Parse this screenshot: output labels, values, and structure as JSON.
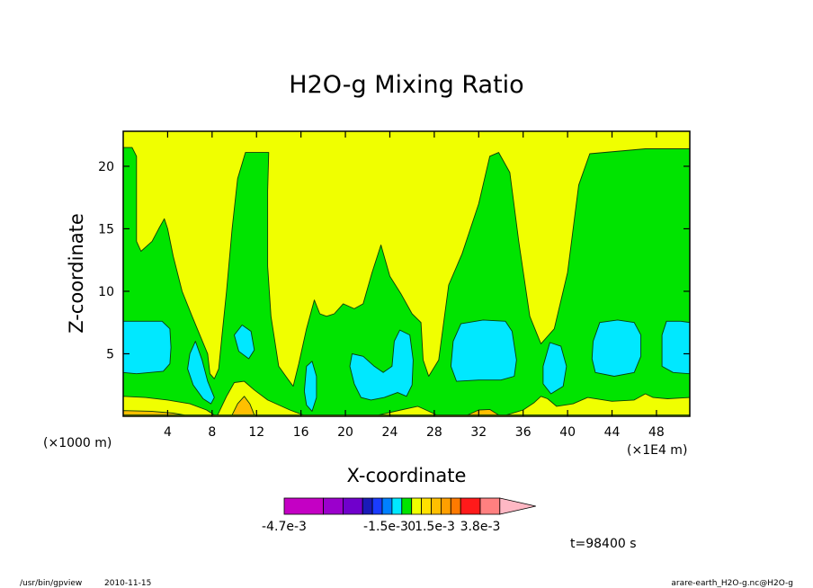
{
  "footer": {
    "left_path": "/usr/bin/gpview",
    "left_date": "2010-11-15",
    "right_text": "arare-earth_H2O-g.nc@H2O-g"
  },
  "time_label": "t=98400 s",
  "chart_data": {
    "type": "contour",
    "title": "H2O-g Mixing Ratio",
    "xlabel": "X-coordinate",
    "ylabel": "Z-coordinate",
    "x_unit_label": "(×1E4 m)",
    "y_unit_label": "(×1000 m)",
    "xlim": [
      0,
      51
    ],
    "ylim": [
      0,
      22.8
    ],
    "x_ticks": [
      4,
      8,
      12,
      16,
      20,
      24,
      28,
      32,
      36,
      40,
      44,
      48
    ],
    "y_ticks": [
      5,
      10,
      15,
      20
    ],
    "regions": [
      {
        "level": "green",
        "polygon": [
          [
            0,
            0.1
          ],
          [
            51,
            0.1
          ],
          [
            51,
            21.4
          ],
          [
            47,
            21.4
          ],
          [
            42,
            21.0
          ],
          [
            41,
            18.5
          ],
          [
            40,
            11.5
          ],
          [
            38.8,
            7.0
          ],
          [
            37.6,
            5.8
          ],
          [
            36.6,
            8.0
          ],
          [
            35.6,
            14.0
          ],
          [
            34.8,
            19.5
          ],
          [
            33.8,
            21.1
          ],
          [
            33.0,
            20.8
          ],
          [
            32.0,
            17.0
          ],
          [
            30.5,
            13.0
          ],
          [
            29.3,
            10.5
          ],
          [
            28.4,
            4.5
          ],
          [
            27.5,
            3.2
          ],
          [
            27.0,
            4.5
          ],
          [
            26.8,
            7.5
          ],
          [
            26.0,
            8.2
          ],
          [
            25.0,
            9.8
          ],
          [
            24.0,
            11.2
          ],
          [
            23.2,
            13.7
          ],
          [
            22.4,
            11.5
          ],
          [
            21.6,
            9.0
          ],
          [
            20.8,
            8.6
          ],
          [
            19.8,
            9.0
          ],
          [
            19.0,
            8.2
          ],
          [
            18.3,
            8.0
          ],
          [
            17.7,
            8.2
          ],
          [
            17.2,
            9.3
          ],
          [
            16.5,
            7.0
          ],
          [
            15.8,
            4.2
          ],
          [
            15.3,
            2.4
          ],
          [
            14.8,
            3.0
          ],
          [
            14.0,
            4.0
          ],
          [
            13.3,
            8.0
          ],
          [
            13.0,
            12.0
          ],
          [
            13.0,
            18.0
          ],
          [
            13.1,
            21.1
          ],
          [
            12.4,
            21.1
          ],
          [
            11.0,
            21.1
          ],
          [
            10.3,
            19.0
          ],
          [
            9.8,
            15.0
          ],
          [
            9.3,
            10.0
          ],
          [
            8.9,
            6.5
          ],
          [
            8.6,
            3.8
          ],
          [
            8.2,
            3.0
          ],
          [
            7.8,
            3.4
          ],
          [
            7.6,
            5.0
          ],
          [
            6.9,
            6.5
          ],
          [
            6.2,
            8.0
          ],
          [
            5.3,
            10.0
          ],
          [
            4.5,
            12.8
          ],
          [
            4.0,
            15.0
          ],
          [
            3.7,
            15.8
          ],
          [
            3.2,
            15.0
          ],
          [
            2.6,
            14.0
          ],
          [
            1.6,
            13.2
          ],
          [
            1.2,
            14.0
          ],
          [
            1.2,
            18.0
          ],
          [
            1.2,
            20.8
          ],
          [
            0.8,
            21.5
          ],
          [
            0,
            21.5
          ]
        ]
      },
      {
        "level": "cyan",
        "polygon": [
          [
            0,
            3.5
          ],
          [
            1.2,
            3.4
          ],
          [
            2.4,
            3.5
          ],
          [
            3.6,
            3.6
          ],
          [
            4.2,
            4.2
          ],
          [
            4.3,
            5.5
          ],
          [
            4.2,
            7.0
          ],
          [
            3.5,
            7.6
          ],
          [
            2.0,
            7.6
          ],
          [
            0.8,
            7.6
          ],
          [
            0,
            7.6
          ]
        ]
      },
      {
        "level": "cyan",
        "polygon": [
          [
            6.0,
            5.0
          ],
          [
            6.5,
            6.0
          ],
          [
            7.1,
            4.5
          ],
          [
            7.6,
            2.8
          ],
          [
            8.2,
            1.5
          ],
          [
            7.9,
            1.0
          ],
          [
            7.2,
            1.4
          ],
          [
            6.3,
            2.5
          ],
          [
            5.8,
            3.8
          ]
        ]
      },
      {
        "level": "cyan",
        "polygon": [
          [
            10.0,
            6.5
          ],
          [
            10.7,
            7.3
          ],
          [
            11.5,
            6.8
          ],
          [
            11.8,
            5.3
          ],
          [
            11.3,
            4.6
          ],
          [
            10.4,
            5.2
          ]
        ]
      },
      {
        "level": "cyan",
        "polygon": [
          [
            16.3,
            2.0
          ],
          [
            16.5,
            4.0
          ],
          [
            17.0,
            4.4
          ],
          [
            17.4,
            3.2
          ],
          [
            17.4,
            1.5
          ],
          [
            17.0,
            0.4
          ],
          [
            16.5,
            0.9
          ]
        ]
      },
      {
        "level": "cyan",
        "polygon": [
          [
            20.4,
            4.0
          ],
          [
            20.6,
            5.0
          ],
          [
            21.6,
            4.8
          ],
          [
            22.6,
            4.0
          ],
          [
            23.4,
            3.5
          ],
          [
            24.2,
            4.0
          ],
          [
            24.4,
            6.0
          ],
          [
            24.9,
            6.9
          ],
          [
            25.8,
            6.5
          ],
          [
            26.1,
            4.5
          ],
          [
            26.0,
            2.5
          ],
          [
            25.5,
            1.6
          ],
          [
            24.7,
            1.9
          ],
          [
            23.5,
            1.5
          ],
          [
            22.3,
            1.3
          ],
          [
            21.4,
            1.5
          ],
          [
            20.8,
            2.6
          ]
        ]
      },
      {
        "level": "cyan",
        "polygon": [
          [
            29.7,
            6.0
          ],
          [
            30.4,
            7.4
          ],
          [
            32.4,
            7.7
          ],
          [
            34.4,
            7.6
          ],
          [
            35.0,
            6.8
          ],
          [
            35.4,
            4.5
          ],
          [
            35.2,
            3.2
          ],
          [
            34.0,
            2.9
          ],
          [
            32.0,
            2.9
          ],
          [
            30.0,
            2.8
          ],
          [
            29.5,
            4.0
          ]
        ]
      },
      {
        "level": "cyan",
        "polygon": [
          [
            37.8,
            4.0
          ],
          [
            38.4,
            5.9
          ],
          [
            39.4,
            5.6
          ],
          [
            39.9,
            4.0
          ],
          [
            39.6,
            2.4
          ],
          [
            38.5,
            1.8
          ],
          [
            37.8,
            2.6
          ]
        ]
      },
      {
        "level": "cyan",
        "polygon": [
          [
            42.3,
            6.0
          ],
          [
            42.9,
            7.5
          ],
          [
            44.5,
            7.7
          ],
          [
            46.0,
            7.5
          ],
          [
            46.6,
            6.5
          ],
          [
            46.6,
            4.8
          ],
          [
            46.0,
            3.5
          ],
          [
            44.2,
            3.2
          ],
          [
            42.5,
            3.5
          ],
          [
            42.2,
            4.6
          ]
        ]
      },
      {
        "level": "cyan",
        "polygon": [
          [
            48.5,
            6.5
          ],
          [
            48.9,
            7.6
          ],
          [
            50.2,
            7.6
          ],
          [
            51,
            7.5
          ],
          [
            51,
            3.4
          ],
          [
            49.5,
            3.5
          ],
          [
            48.5,
            4.0
          ]
        ]
      },
      {
        "level": "yellow",
        "polygon": [
          [
            0,
            0.1
          ],
          [
            0,
            1.6
          ],
          [
            2,
            1.5
          ],
          [
            4,
            1.3
          ],
          [
            6,
            1.0
          ],
          [
            7.5,
            0.5
          ],
          [
            8.2,
            0.1
          ]
        ]
      },
      {
        "level": "yellow",
        "polygon": [
          [
            8.5,
            0.1
          ],
          [
            9.3,
            1.6
          ],
          [
            10.0,
            2.7
          ],
          [
            10.9,
            2.8
          ],
          [
            11.8,
            2.1
          ],
          [
            13.0,
            1.3
          ],
          [
            15.0,
            0.5
          ],
          [
            16.2,
            0.1
          ]
        ]
      },
      {
        "level": "yellow",
        "polygon": [
          [
            23.0,
            0.1
          ],
          [
            25.0,
            0.5
          ],
          [
            26.5,
            0.8
          ],
          [
            27.5,
            0.4
          ],
          [
            28.2,
            0.1
          ]
        ]
      },
      {
        "level": "yellow",
        "polygon": [
          [
            34.5,
            0.1
          ],
          [
            36.0,
            0.5
          ],
          [
            37.0,
            1.1
          ],
          [
            37.6,
            1.6
          ],
          [
            38.2,
            1.4
          ],
          [
            39.0,
            0.8
          ],
          [
            40.5,
            1.0
          ],
          [
            41.8,
            1.5
          ],
          [
            44.0,
            1.2
          ],
          [
            46.0,
            1.3
          ],
          [
            47.0,
            1.8
          ],
          [
            47.7,
            1.5
          ],
          [
            49.0,
            1.4
          ],
          [
            51,
            1.5
          ],
          [
            51,
            0.1
          ]
        ]
      },
      {
        "level": "orange",
        "polygon": [
          [
            9.8,
            0.1
          ],
          [
            10.3,
            1.0
          ],
          [
            10.9,
            1.6
          ],
          [
            11.4,
            1.0
          ],
          [
            11.8,
            0.1
          ]
        ]
      },
      {
        "level": "orange",
        "polygon": [
          [
            0,
            0.1
          ],
          [
            0,
            0.45
          ],
          [
            2.5,
            0.4
          ],
          [
            4.5,
            0.25
          ],
          [
            5.5,
            0.1
          ]
        ]
      },
      {
        "level": "orange",
        "polygon": [
          [
            31.0,
            0.1
          ],
          [
            32.0,
            0.5
          ],
          [
            33.0,
            0.55
          ],
          [
            33.8,
            0.1
          ]
        ]
      }
    ],
    "level_colors": {
      "background": "#f0ff00",
      "green": "#00e400",
      "cyan": "#00e8ff",
      "yellow": "#f0ff00",
      "orange": "#ffbf00"
    },
    "line_color": "#0a3d0a",
    "colorbar": {
      "colors": [
        "#c400c4",
        "#9b00cc",
        "#7000cc",
        "#1a1ab8",
        "#1a3cff",
        "#0080ff",
        "#00e8ff",
        "#00e400",
        "#f0ff00",
        "#ffe000",
        "#ffbf00",
        "#ff9f00",
        "#ff7a00",
        "#ff1a1a",
        "#ff8080"
      ],
      "widths": [
        2,
        1,
        1,
        0.5,
        0.5,
        0.5,
        0.5,
        0.5,
        0.5,
        0.5,
        0.5,
        0.5,
        0.5,
        1,
        1
      ],
      "extend_color": "#ffb8c4",
      "labels": [
        "-4.7e-3",
        "-1.5e-3",
        "0",
        "1.5e-3",
        "3.8e-3"
      ]
    }
  }
}
